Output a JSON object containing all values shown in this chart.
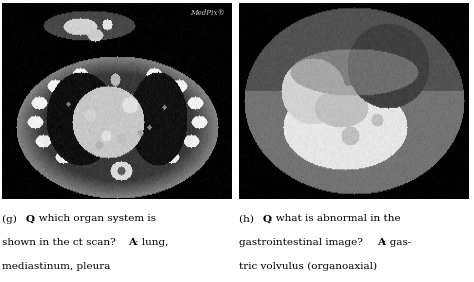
{
  "fig_width": 4.74,
  "fig_height": 2.82,
  "dpi": 100,
  "background_color": "#ffffff",
  "ct_bg": "#000000",
  "xray_bg": "#000000",
  "medpix_text": "MedPix®",
  "medpix_color": "#cccccc",
  "left_lines": [
    [
      [
        "(g) ",
        false
      ],
      [
        "Q",
        true
      ],
      [
        ": which organ system is",
        false
      ]
    ],
    [
      [
        "shown in the ct scan? ",
        false
      ],
      [
        "A",
        true
      ],
      [
        ": lung,",
        false
      ]
    ],
    [
      [
        "mediastinum, pleura",
        false
      ]
    ]
  ],
  "right_lines": [
    [
      [
        "(h) ",
        false
      ],
      [
        "Q",
        true
      ],
      [
        ": what is abnormal in the",
        false
      ]
    ],
    [
      [
        "gastrointestinal image? ",
        false
      ],
      [
        "A",
        true
      ],
      [
        ": gas-",
        false
      ]
    ],
    [
      [
        "tric volvulus (organoaxial)",
        false
      ]
    ]
  ],
  "caption_fontsize": 7.5,
  "caption_font": "DejaVu Serif"
}
